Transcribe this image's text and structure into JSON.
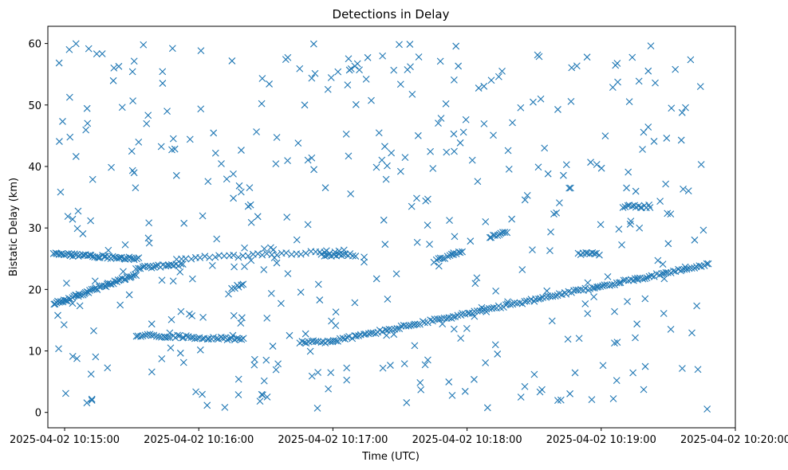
{
  "chart_data": {
    "type": "scatter",
    "title": "Detections in Delay",
    "xlabel": "Time (UTC)",
    "ylabel": "Bistatic Delay (km)",
    "marker": "x",
    "marker_color": "#1f77b4",
    "x_unit": "seconds since 2025-04-02 10:14:00",
    "xlim": [
      52.5,
      360
    ],
    "ylim": [
      -2.5,
      62.8
    ],
    "x_ticks": [
      {
        "value": 60,
        "label": "2025-04-02 10:15:00"
      },
      {
        "value": 120,
        "label": "2025-04-02 10:16:00"
      },
      {
        "value": 180,
        "label": "2025-04-02 10:17:00"
      },
      {
        "value": 240,
        "label": "2025-04-02 10:18:00"
      },
      {
        "value": 300,
        "label": "2025-04-02 10:19:00"
      },
      {
        "value": 360,
        "label": "2025-04-02 10:20:00"
      }
    ],
    "y_ticks": [
      {
        "value": 0,
        "label": "0"
      },
      {
        "value": 10,
        "label": "10"
      },
      {
        "value": 20,
        "label": "20"
      },
      {
        "value": 30,
        "label": "30"
      },
      {
        "value": 40,
        "label": "40"
      },
      {
        "value": 50,
        "label": "50"
      },
      {
        "value": 60,
        "label": "60"
      }
    ],
    "tracks": [
      {
        "name": "track-rising-1",
        "x_start": 55,
        "x_end": 92,
        "y_start": 17.6,
        "y_end": 22.4,
        "count": 55
      },
      {
        "name": "track-rising-2",
        "x_start": 92,
        "x_end": 113,
        "y_start": 23.5,
        "y_end": 24.0,
        "count": 22
      },
      {
        "name": "track-25-a",
        "x_start": 55,
        "x_end": 93,
        "y_start": 25.8,
        "y_end": 25.0,
        "count": 48
      },
      {
        "name": "track-25-b",
        "x_start": 110,
        "x_end": 185,
        "y_start": 25.0,
        "y_end": 26.2,
        "count": 36
      },
      {
        "name": "track-25-c",
        "x_start": 175,
        "x_end": 190,
        "y_start": 25.6,
        "y_end": 25.6,
        "count": 15
      },
      {
        "name": "track-12-a",
        "x_start": 92,
        "x_end": 140,
        "y_start": 12.6,
        "y_end": 11.9,
        "count": 48
      },
      {
        "name": "track-11-5",
        "x_start": 165,
        "x_end": 180,
        "y_start": 11.5,
        "y_end": 11.5,
        "count": 15
      },
      {
        "name": "track-diagonal-main",
        "x_start": 180,
        "x_end": 348,
        "y_start": 11.6,
        "y_end": 24.1,
        "count": 160
      },
      {
        "name": "track-24-rise",
        "x_start": 225,
        "x_end": 238,
        "y_start": 24.6,
        "y_end": 26.2,
        "count": 14
      },
      {
        "name": "track-29",
        "x_start": 250,
        "x_end": 258,
        "y_start": 28.6,
        "y_end": 29.2,
        "count": 10
      },
      {
        "name": "track-25-d",
        "x_start": 290,
        "x_end": 299,
        "y_start": 25.8,
        "y_end": 25.8,
        "count": 10
      },
      {
        "name": "track-33-5",
        "x_start": 310,
        "x_end": 322,
        "y_start": 33.5,
        "y_end": 33.5,
        "count": 14
      },
      {
        "name": "track-20-5",
        "x_start": 135,
        "x_end": 140,
        "y_start": 20.3,
        "y_end": 20.8,
        "count": 6
      }
    ],
    "noise": {
      "x_range": [
        55,
        348
      ],
      "y_range": [
        0.5,
        60
      ],
      "count": 420
    }
  }
}
